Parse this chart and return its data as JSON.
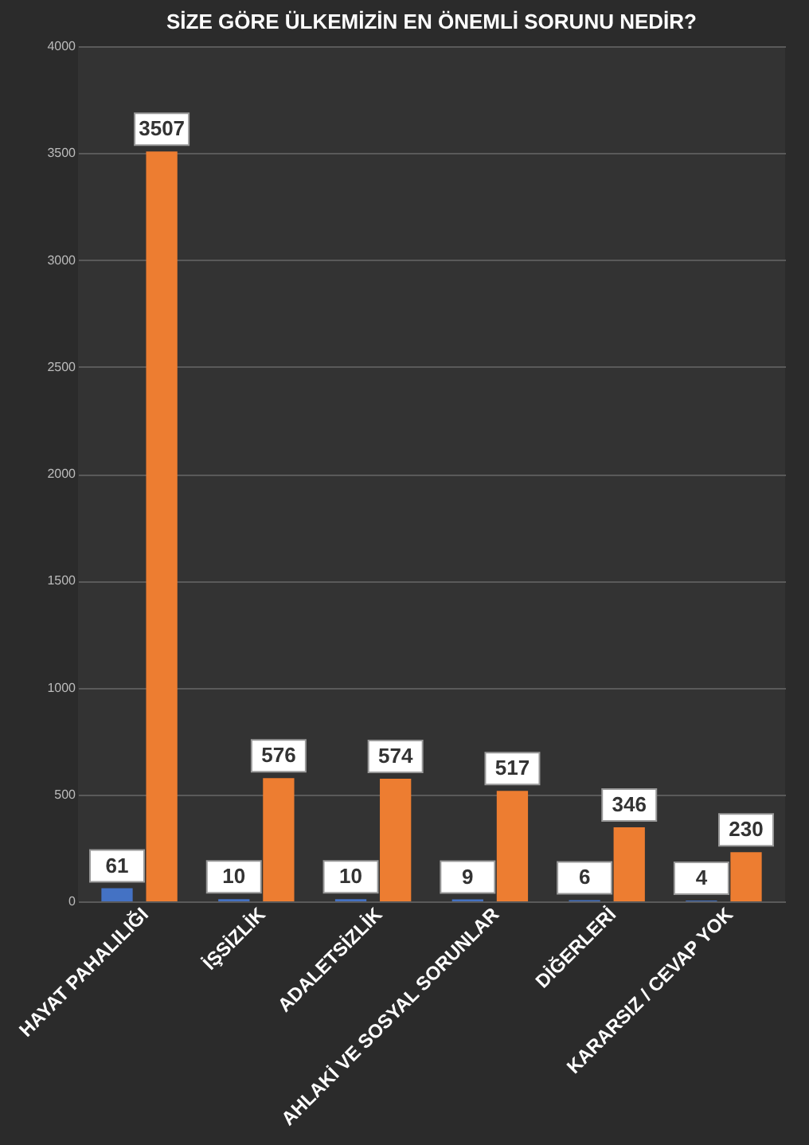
{
  "chart_data": {
    "type": "bar",
    "title": "SİZE GÖRE ÜLKEMİZİN EN ÖNEMLİ SORUNU NEDİR?",
    "categories": [
      "HAYAT PAHALILIĞI",
      "İŞSİZLİK",
      "ADALETSİZLİK",
      "AHLAKİ VE SOSYAL SORUNLAR",
      "DİĞERLERİ",
      "KARARSIZ / CEVAP YOK"
    ],
    "series": [
      {
        "color": "#4472c4",
        "values": [
          61,
          10,
          10,
          9,
          6,
          4
        ]
      },
      {
        "color": "#ed7d31",
        "values": [
          3507,
          576,
          574,
          517,
          346,
          230
        ]
      }
    ],
    "ylim": [
      0,
      4000
    ],
    "yticks": [
      0,
      500,
      1000,
      1500,
      2000,
      2500,
      3000,
      3500,
      4000
    ],
    "grid": "y",
    "data_labels": true
  }
}
